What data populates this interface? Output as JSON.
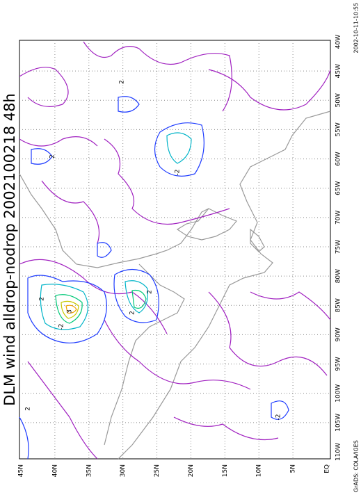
{
  "title": "DLM wind alldrop-nodrop 2002100218 48h",
  "lon_labels": [
    "40W",
    "45W",
    "50W",
    "55W",
    "60W",
    "65W",
    "70W",
    "75W",
    "80W",
    "85W",
    "90W",
    "95W",
    "100W",
    "105W",
    "110W"
  ],
  "lat_labels": [
    "45N",
    "40N",
    "35N",
    "30N",
    "25N",
    "20N",
    "15N",
    "10N",
    "5N",
    "EQ"
  ],
  "contour_labels": [
    "2",
    "2",
    "-2",
    "2",
    "3",
    "-2",
    "2",
    "2",
    "-2",
    "2"
  ],
  "footer": {
    "left": "GrADS: COLA/IGES",
    "right": "2002-10-11-10:55"
  }
}
